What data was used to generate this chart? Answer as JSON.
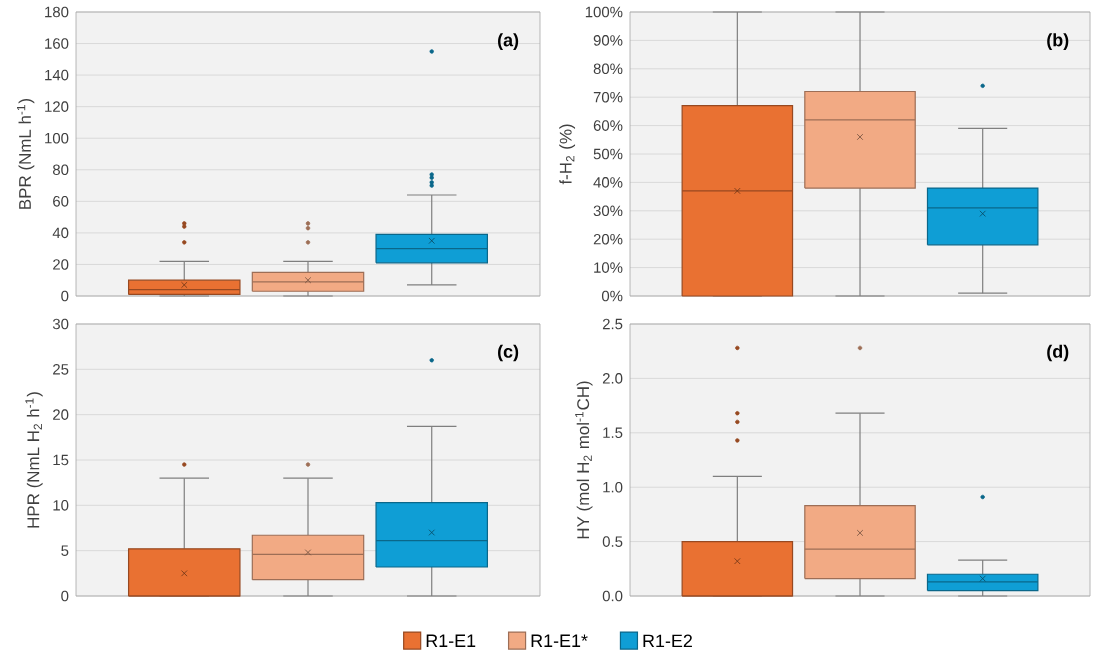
{
  "chart_data": [
    {
      "type": "box",
      "ylabel": "BPR (NmL h$^{-1}$)",
      "annotations": [
        "(a)"
      ],
      "categories": [
        null
      ],
      "ylim": [
        0,
        180
      ],
      "yticks": [
        0,
        20,
        40,
        60,
        80,
        100,
        120,
        140,
        160,
        180
      ],
      "grid": "y",
      "tick_labels": "y",
      "series": [
        {
          "color": "#e97132",
          "boxes": [
            {
              "low": 0,
              "q1": 1,
              "median": 4,
              "q3": 10,
              "high": 22,
              "mean": 7,
              "outliers": [
                34,
                44,
                46
              ]
            }
          ]
        },
        {
          "color": "#f2aa84",
          "boxes": [
            {
              "low": 0,
              "q1": 3,
              "median": 9,
              "q3": 15,
              "high": 22,
              "mean": 10,
              "outliers": [
                34,
                43,
                46
              ]
            }
          ]
        },
        {
          "color": "#0f9ed5",
          "boxes": [
            {
              "low": 7,
              "q1": 21,
              "median": 30,
              "q3": 39,
              "high": 64,
              "mean": 35,
              "outliers": [
                70,
                72,
                75,
                77,
                155
              ]
            }
          ]
        }
      ]
    },
    {
      "type": "box",
      "ylabel": "f-H$_{2}$ (%)",
      "annotations": [
        "(b)"
      ],
      "categories": [
        null
      ],
      "ylim": [
        0,
        100
      ],
      "yticks": [
        {
          "value": 0,
          "label": "0%"
        },
        {
          "value": 10,
          "label": "10%"
        },
        {
          "value": 20,
          "label": "20%"
        },
        {
          "value": 30,
          "label": "30%"
        },
        {
          "value": 40,
          "label": "40%"
        },
        {
          "value": 50,
          "label": "50%"
        },
        {
          "value": 60,
          "label": "60%"
        },
        {
          "value": 70,
          "label": "70%"
        },
        {
          "value": 80,
          "label": "80%"
        },
        {
          "value": 90,
          "label": "90%"
        },
        {
          "value": 100,
          "label": "100%"
        }
      ],
      "grid": "y",
      "tick_labels": "y",
      "series": [
        {
          "color": "#e97132",
          "boxes": [
            {
              "low": 0,
              "q1": 0,
              "median": 37,
              "q3": 67,
              "high": 100,
              "mean": 37
            }
          ]
        },
        {
          "color": "#f2aa84",
          "boxes": [
            {
              "low": 0,
              "q1": 38,
              "median": 62,
              "q3": 72,
              "high": 100,
              "mean": 56
            }
          ]
        },
        {
          "color": "#0f9ed5",
          "boxes": [
            {
              "low": 1,
              "q1": 18,
              "median": 31,
              "q3": 38,
              "high": 59,
              "mean": 29,
              "outliers": [
                74
              ]
            }
          ]
        }
      ]
    },
    {
      "type": "box",
      "ylabel": "HPR (NmL H$_{2}$ h$^{-1}$)",
      "annotations": [
        "(c)"
      ],
      "categories": [
        null
      ],
      "ylim": [
        0,
        30
      ],
      "yticks": [
        0,
        5,
        10,
        15,
        20,
        25,
        30
      ],
      "grid": "y",
      "tick_labels": "y",
      "series": [
        {
          "color": "#e97132",
          "boxes": [
            {
              "low": 0,
              "q1": 0,
              "median": 0,
              "q3": 5.2,
              "high": 13,
              "mean": 2.5,
              "outliers": [
                14.5
              ]
            }
          ]
        },
        {
          "color": "#f2aa84",
          "boxes": [
            {
              "low": 0,
              "q1": 1.8,
              "median": 4.6,
              "q3": 6.7,
              "high": 13,
              "mean": 4.8,
              "outliers": [
                14.5
              ]
            }
          ]
        },
        {
          "color": "#0f9ed5",
          "boxes": [
            {
              "low": 0,
              "q1": 3.2,
              "median": 6.1,
              "q3": 10.3,
              "high": 18.7,
              "mean": 7,
              "outliers": [
                26
              ]
            }
          ]
        }
      ]
    },
    {
      "type": "box",
      "ylabel": "HY (mol H$_{2}$ mol$^{-1}$CH)",
      "annotations": [
        "(d)"
      ],
      "categories": [
        null
      ],
      "ylim": [
        0,
        2.5
      ],
      "yticks": [
        {
          "value": 0,
          "label": "0.0"
        },
        0.5,
        {
          "value": 1,
          "label": "1.0"
        },
        1.5,
        {
          "value": 2,
          "label": "2.0"
        },
        2.5
      ],
      "grid": "y",
      "tick_labels": "y",
      "legend": "bottom",
      "series": [
        {
          "name": "R1-E1",
          "color": "#e97132",
          "boxes": [
            {
              "low": 0,
              "q1": 0,
              "median": 0,
              "q3": 0.5,
              "high": 1.1,
              "mean": 0.32,
              "outliers": [
                1.43,
                1.6,
                1.68,
                2.28
              ]
            }
          ]
        },
        {
          "name": "R1-E1*",
          "color": "#f2aa84",
          "boxes": [
            {
              "low": 0,
              "q1": 0.16,
              "median": 0.43,
              "q3": 0.83,
              "high": 1.68,
              "mean": 0.58,
              "outliers": [
                2.28
              ]
            }
          ]
        },
        {
          "name": "R1-E2",
          "color": "#0f9ed5",
          "boxes": [
            {
              "low": 0,
              "q1": 0.05,
              "median": 0.13,
              "q3": 0.2,
              "high": 0.33,
              "mean": 0.16,
              "outliers": [
                0.91
              ]
            }
          ]
        }
      ]
    }
  ]
}
